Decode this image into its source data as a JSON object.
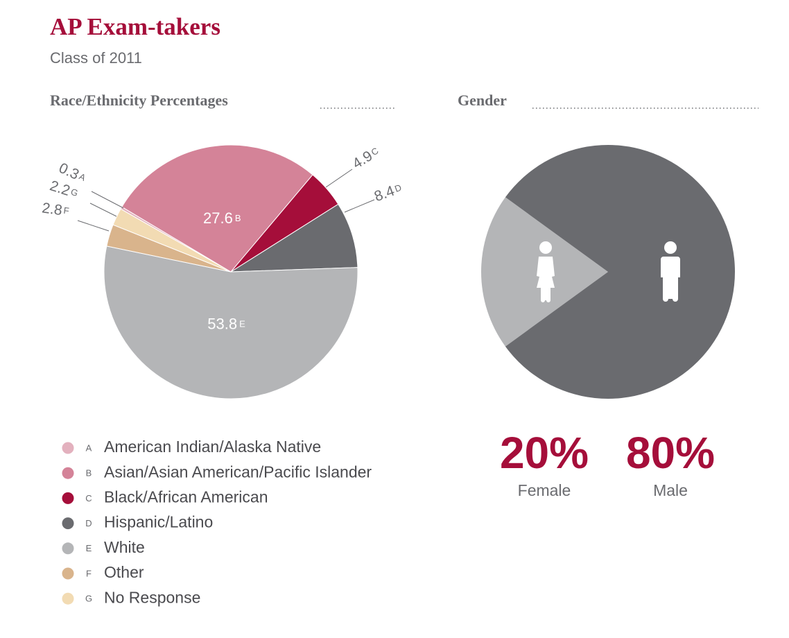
{
  "title": "AP Exam-takers",
  "subtitle": "Class of 2011",
  "chart_data": [
    {
      "type": "pie",
      "title": "Race/Ethnicity Percentages",
      "letters": [
        "A",
        "B",
        "C",
        "D",
        "E",
        "F",
        "G"
      ],
      "categories": [
        "American Indian/Alaska Native",
        "Asian/Asian American/Pacific Islander",
        "Black/African American",
        "Hispanic/Latino",
        "White",
        "Other",
        "No Response"
      ],
      "values": [
        0.3,
        27.6,
        4.9,
        8.4,
        53.8,
        2.8,
        2.2
      ],
      "colors": [
        "#e3b1be",
        "#d48398",
        "#a50e3a",
        "#6a6b6f",
        "#b4b5b7",
        "#d9b48c",
        "#f2dbb3"
      ]
    },
    {
      "type": "pie",
      "title": "Gender",
      "categories": [
        "Female",
        "Male"
      ],
      "values": [
        20,
        80
      ],
      "value_labels": [
        "20%",
        "80%"
      ],
      "colors": [
        "#b4b5b7",
        "#6a6b6f"
      ]
    }
  ]
}
